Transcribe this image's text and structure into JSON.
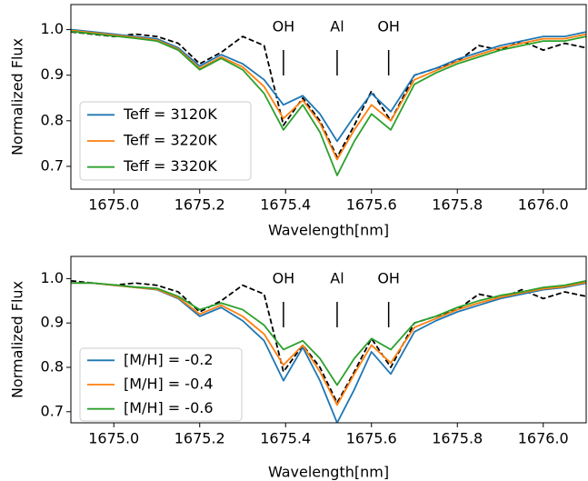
{
  "chart_data": [
    {
      "type": "line",
      "xlabel": "Wavelength[nm]",
      "ylabel": "Normalized Flux",
      "x": [
        1674.9,
        1674.95,
        1675.0,
        1675.05,
        1675.1,
        1675.15,
        1675.2,
        1675.25,
        1675.3,
        1675.35,
        1675.395,
        1675.44,
        1675.48,
        1675.52,
        1675.56,
        1675.6,
        1675.645,
        1675.7,
        1675.75,
        1675.8,
        1675.85,
        1675.9,
        1675.95,
        1676.0,
        1676.05,
        1676.1
      ],
      "series": [
        {
          "color": "#000000",
          "linestyle": "dashed",
          "values": [
            0.995,
            0.99,
            0.985,
            0.99,
            0.985,
            0.97,
            0.925,
            0.95,
            0.985,
            0.965,
            0.79,
            0.85,
            0.8,
            0.72,
            0.79,
            0.865,
            0.8,
            0.9,
            0.915,
            0.93,
            0.965,
            0.955,
            0.975,
            0.955,
            0.97,
            0.96
          ]
        },
        {
          "name": "Teff = 3120K",
          "color": "#1f77b4",
          "values": [
            1.0,
            0.995,
            0.99,
            0.985,
            0.98,
            0.96,
            0.92,
            0.945,
            0.925,
            0.89,
            0.835,
            0.855,
            0.815,
            0.755,
            0.81,
            0.86,
            0.82,
            0.9,
            0.915,
            0.935,
            0.95,
            0.965,
            0.975,
            0.985,
            0.985,
            0.995
          ]
        },
        {
          "name": "Teff = 3220K",
          "color": "#ff7f0e",
          "values": [
            0.998,
            0.993,
            0.988,
            0.983,
            0.977,
            0.957,
            0.915,
            0.94,
            0.918,
            0.875,
            0.805,
            0.845,
            0.795,
            0.715,
            0.78,
            0.835,
            0.8,
            0.89,
            0.91,
            0.93,
            0.945,
            0.96,
            0.97,
            0.98,
            0.98,
            0.99
          ]
        },
        {
          "name": "Teff = 3320K",
          "color": "#2ca02c",
          "values": [
            0.996,
            0.991,
            0.986,
            0.981,
            0.975,
            0.955,
            0.912,
            0.937,
            0.912,
            0.86,
            0.78,
            0.835,
            0.775,
            0.68,
            0.755,
            0.815,
            0.78,
            0.88,
            0.905,
            0.925,
            0.94,
            0.955,
            0.965,
            0.975,
            0.975,
            0.985
          ]
        }
      ],
      "xlim": [
        1674.9,
        1676.1
      ],
      "ylim": [
        0.65,
        1.055
      ],
      "xticks": [
        {
          "value": 1675,
          "label": "1675.0"
        },
        1675.2,
        1675.4,
        1675.6,
        1675.8,
        {
          "value": 1676,
          "label": "1676.0"
        }
      ],
      "yticks": [
        0.7,
        0.8,
        0.9,
        {
          "value": 1,
          "label": "1.0"
        }
      ],
      "legend": "lower left",
      "annotations": [
        {
          "text": "OH",
          "x": 1675.395
        },
        {
          "text": "Al",
          "x": 1675.52
        },
        {
          "text": "OH",
          "x": 1675.64
        }
      ]
    },
    {
      "type": "line",
      "xlabel": "Wavelength[nm]",
      "ylabel": "Normalized Flux",
      "x": [
        1674.9,
        1674.95,
        1675.0,
        1675.05,
        1675.1,
        1675.15,
        1675.2,
        1675.25,
        1675.3,
        1675.35,
        1675.395,
        1675.44,
        1675.48,
        1675.52,
        1675.56,
        1675.6,
        1675.645,
        1675.7,
        1675.75,
        1675.8,
        1675.85,
        1675.9,
        1675.95,
        1676.0,
        1676.05,
        1676.1
      ],
      "series": [
        {
          "color": "#000000",
          "linestyle": "dashed",
          "values": [
            0.995,
            0.99,
            0.985,
            0.99,
            0.985,
            0.97,
            0.925,
            0.95,
            0.985,
            0.965,
            0.79,
            0.85,
            0.8,
            0.72,
            0.79,
            0.865,
            0.8,
            0.9,
            0.915,
            0.93,
            0.965,
            0.955,
            0.975,
            0.955,
            0.97,
            0.96
          ]
        },
        {
          "name": "[M/H] = -0.2",
          "color": "#1f77b4",
          "values": [
            0.99,
            0.99,
            0.985,
            0.98,
            0.975,
            0.955,
            0.915,
            0.935,
            0.905,
            0.86,
            0.77,
            0.845,
            0.77,
            0.675,
            0.75,
            0.835,
            0.785,
            0.88,
            0.905,
            0.925,
            0.94,
            0.955,
            0.965,
            0.975,
            0.98,
            0.99
          ]
        },
        {
          "name": "[M/H] = -0.4",
          "color": "#ff7f0e",
          "values": [
            0.99,
            0.99,
            0.985,
            0.98,
            0.976,
            0.957,
            0.92,
            0.94,
            0.915,
            0.875,
            0.805,
            0.85,
            0.79,
            0.715,
            0.785,
            0.85,
            0.81,
            0.89,
            0.91,
            0.93,
            0.945,
            0.958,
            0.968,
            0.977,
            0.982,
            0.992
          ]
        },
        {
          "name": "[M/H] = -0.6",
          "color": "#2ca02c",
          "values": [
            0.99,
            0.99,
            0.986,
            0.981,
            0.978,
            0.96,
            0.93,
            0.945,
            0.93,
            0.895,
            0.84,
            0.86,
            0.82,
            0.76,
            0.82,
            0.865,
            0.84,
            0.9,
            0.915,
            0.935,
            0.95,
            0.962,
            0.97,
            0.98,
            0.985,
            0.995
          ]
        }
      ],
      "xlim": [
        1674.9,
        1676.1
      ],
      "ylim": [
        0.675,
        1.05
      ],
      "xticks": [
        {
          "value": 1675,
          "label": "1675.0"
        },
        1675.2,
        1675.4,
        1675.6,
        1675.8,
        {
          "value": 1676,
          "label": "1676.0"
        }
      ],
      "yticks": [
        0.7,
        0.8,
        0.9,
        {
          "value": 1,
          "label": "1.0"
        }
      ],
      "legend": "lower left",
      "annotations": [
        {
          "text": "OH",
          "x": 1675.395
        },
        {
          "text": "Al",
          "x": 1675.52
        },
        {
          "text": "OH",
          "x": 1675.64
        }
      ]
    }
  ]
}
